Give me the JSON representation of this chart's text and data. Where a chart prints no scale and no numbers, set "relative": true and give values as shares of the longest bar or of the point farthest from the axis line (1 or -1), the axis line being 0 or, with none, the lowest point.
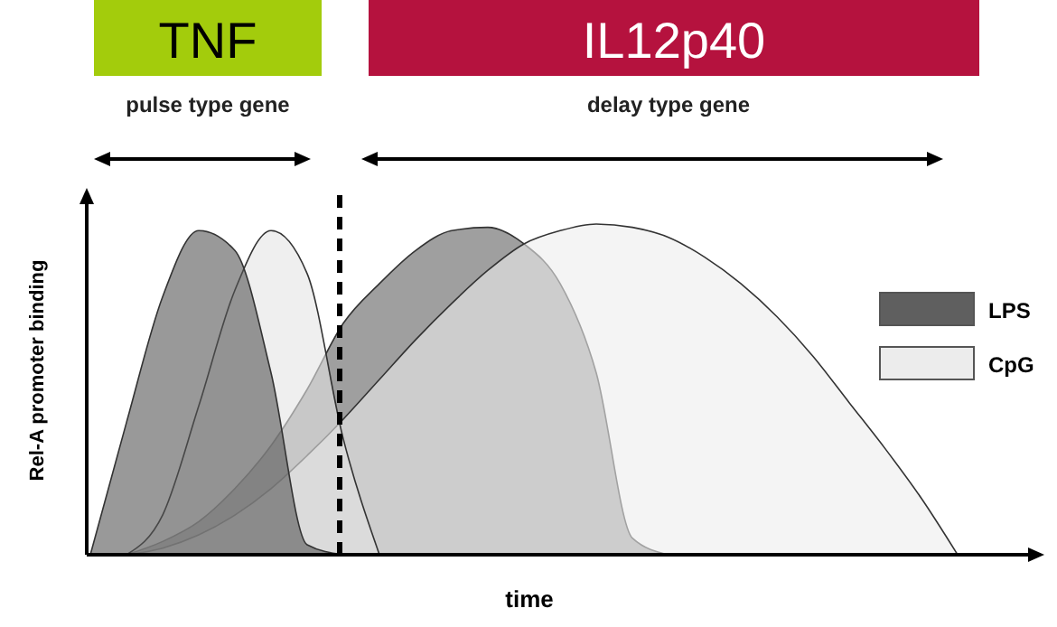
{
  "chart_data": {
    "type": "area",
    "relative": true,
    "xlabel": "time",
    "ylabel": "Rel-A promoter binding",
    "legend": "right",
    "annotations": [
      "TNF",
      "IL12p40",
      "pulse type gene",
      "delay type gene"
    ],
    "categories": [
      null,
      null,
      null,
      null,
      null,
      null,
      null,
      null,
      null,
      null,
      null,
      null,
      null,
      null,
      null,
      null,
      null,
      null,
      null,
      null,
      null,
      null,
      null,
      null,
      null,
      null,
      null
    ],
    "series": [
      {
        "name": "LPS",
        "color": "#5f5f5f",
        "values": [
          null,
          0,
          0.04,
          0.1,
          0.2,
          0.33,
          0.5,
          0.7,
          0.82,
          0.92,
          0.98,
          0.99,
          0.94,
          0.82,
          0.55,
          0.05,
          0,
          null,
          null,
          null,
          null,
          null,
          null,
          null,
          null,
          null,
          null
        ]
      },
      {
        "name": "CpG",
        "color": "#ececec",
        "values": [
          null,
          0,
          0.02,
          0.06,
          0.12,
          0.2,
          0.3,
          0.41,
          0.53,
          0.65,
          0.76,
          0.86,
          0.94,
          0.98,
          1,
          0.99,
          0.96,
          0.9,
          0.82,
          0.72,
          0.6,
          0.46,
          0.32,
          0.17,
          0,
          null,
          null
        ]
      },
      {
        "color": "#e4e4e4",
        "values": [
          null,
          0,
          0.12,
          0.45,
          0.8,
          0.98,
          0.85,
          0.35,
          0,
          null,
          null,
          null,
          null,
          null,
          null,
          null,
          null,
          null,
          null,
          null,
          null,
          null,
          null,
          null,
          null,
          null,
          null
        ]
      },
      {
        "color": "#555555",
        "values": [
          0,
          0.4,
          0.78,
          0.98,
          0.92,
          0.55,
          0.03,
          0,
          null,
          null,
          null,
          null,
          null,
          null,
          null,
          null,
          null,
          null,
          null,
          null,
          null,
          null,
          null,
          null,
          null,
          null,
          null
        ]
      }
    ]
  }
}
